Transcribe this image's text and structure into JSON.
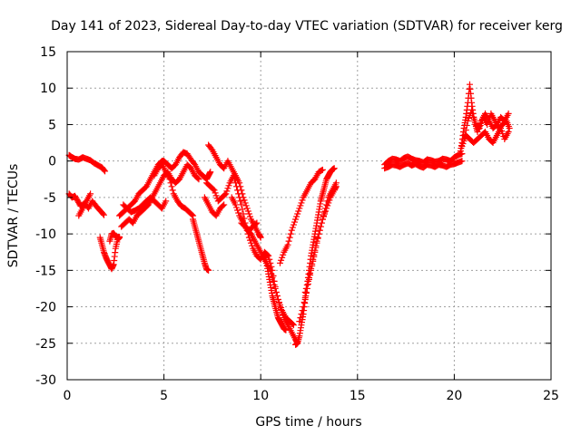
{
  "chart_data": {
    "type": "scatter",
    "title": "Day 141 of 2023, Sidereal Day-to-day VTEC variation (SDTVAR) for receiver kerg",
    "xlabel": "GPS time / hours",
    "ylabel": "SDTVAR / TECUs",
    "xlim": [
      0,
      25
    ],
    "ylim": [
      -30,
      15
    ],
    "xticks": [
      0,
      5,
      10,
      15,
      20,
      25
    ],
    "yticks": [
      -30,
      -25,
      -20,
      -15,
      -10,
      -5,
      0,
      5,
      10,
      15
    ],
    "xtick_labels": [
      "0",
      "5",
      "10",
      "15",
      "20",
      "25"
    ],
    "ytick_labels": [
      "-30",
      "-25",
      "-20",
      "-15",
      "-10",
      "-5",
      "0",
      "5",
      "10",
      "15"
    ],
    "grid": true,
    "marker": "+",
    "series": [
      {
        "name": "SDTVAR",
        "color": "#ff0000",
        "segments": [
          {
            "x": [
              0.1,
              0.2,
              0.4,
              0.6,
              0.8,
              1.0,
              1.2,
              1.4,
              1.6,
              1.8,
              1.95
            ],
            "y": [
              0.8,
              0.6,
              0.3,
              0.2,
              0.5,
              0.3,
              0.1,
              -0.3,
              -0.6,
              -0.9,
              -1.4
            ]
          },
          {
            "x": [
              0.1,
              0.25,
              0.4,
              0.55,
              0.7,
              0.9,
              1.1,
              1.3,
              1.5,
              1.7,
              1.9
            ],
            "y": [
              -4.5,
              -5.0,
              -4.8,
              -5.5,
              -6.2,
              -5.8,
              -6.5,
              -5.5,
              -6.2,
              -6.8,
              -7.4
            ]
          },
          {
            "x": [
              0.6,
              0.8,
              1.0,
              1.2
            ],
            "y": [
              -7.5,
              -6.5,
              -5.5,
              -4.5
            ]
          },
          {
            "x": [
              1.7,
              1.8,
              1.9,
              2.0,
              2.1,
              2.2,
              2.3,
              2.4,
              2.5,
              2.6,
              2.7
            ],
            "y": [
              -10.5,
              -11.5,
              -12.5,
              -13.2,
              -13.8,
              -14.3,
              -14.8,
              -14.2,
              -12.0,
              -10.8,
              -10.5
            ]
          },
          {
            "x": [
              2.2,
              2.3,
              2.4,
              2.5,
              2.6,
              2.7
            ],
            "y": [
              -11.0,
              -10.0,
              -9.9,
              -10.3,
              -10.5,
              -10.4
            ]
          },
          {
            "x": [
              2.7,
              2.9,
              3.1,
              3.3,
              3.5,
              3.7,
              3.9,
              4.1,
              4.3,
              4.5,
              4.7,
              4.9,
              5.0,
              5.2,
              5.4,
              5.6,
              5.8,
              6.0,
              6.2,
              6.4,
              6.6,
              6.8,
              7.0,
              7.2,
              7.3,
              7.4
            ],
            "y": [
              -7.5,
              -7.0,
              -6.5,
              -6.0,
              -5.5,
              -4.5,
              -4.0,
              -3.5,
              -2.5,
              -1.5,
              -0.5,
              0.0,
              0.0,
              -0.5,
              -1.0,
              -0.5,
              0.5,
              1.2,
              1.0,
              0.2,
              -0.5,
              -1.5,
              -2.0,
              -2.5,
              -2.0,
              -1.5
            ]
          },
          {
            "x": [
              2.8,
              3.0,
              3.2,
              3.4,
              3.6,
              3.8,
              4.0,
              4.2,
              4.4,
              4.6,
              4.8,
              5.0,
              5.2,
              5.4,
              5.6,
              5.8,
              6.0,
              6.2,
              6.4,
              6.6,
              6.8
            ],
            "y": [
              -9.0,
              -8.5,
              -8.0,
              -8.5,
              -7.5,
              -7.0,
              -6.5,
              -6.0,
              -5.0,
              -4.0,
              -3.0,
              -2.0,
              -1.5,
              -2.5,
              -3.0,
              -2.5,
              -1.5,
              -0.5,
              -1.0,
              -2.0,
              -2.5
            ]
          },
          {
            "x": [
              2.9,
              3.1,
              3.3,
              3.5,
              3.7,
              3.9,
              4.1,
              4.3,
              4.5,
              4.7,
              4.9,
              5.1
            ],
            "y": [
              -6.0,
              -6.5,
              -7.0,
              -6.8,
              -6.5,
              -6.0,
              -5.5,
              -5.0,
              -5.5,
              -6.0,
              -6.5,
              -5.5
            ]
          },
          {
            "x": [
              4.5,
              4.7,
              4.9,
              5.1,
              5.3,
              5.5,
              5.7,
              5.9,
              6.1,
              6.3,
              6.5
            ],
            "y": [
              -2.0,
              -1.0,
              -0.5,
              -1.5,
              -2.5,
              -4.5,
              -5.5,
              -6.2,
              -6.5,
              -7.0,
              -7.5
            ]
          },
          {
            "x": [
              6.5,
              6.6,
              6.7,
              6.8,
              6.9,
              7.0,
              7.1,
              7.2,
              7.3
            ],
            "y": [
              -8.0,
              -9.0,
              -10.0,
              -11.0,
              -12.0,
              -13.0,
              -14.0,
              -14.8,
              -15.0
            ]
          },
          {
            "x": [
              7.3,
              7.5,
              7.7,
              7.9,
              8.1,
              8.3,
              8.5,
              8.7,
              8.9,
              9.1,
              9.3,
              9.5,
              9.7,
              9.9,
              10.0
            ],
            "y": [
              2.2,
              1.5,
              0.5,
              -0.5,
              -1.0,
              0.0,
              -1.0,
              -2.0,
              -3.0,
              -5.0,
              -6.5,
              -8.0,
              -9.0,
              -10.0,
              -10.5
            ]
          },
          {
            "x": [
              7.2,
              7.4,
              7.6,
              7.8,
              8.0,
              8.2,
              8.4,
              8.6,
              8.8,
              9.0,
              9.2,
              9.4,
              9.6,
              9.8,
              10.0,
              10.2,
              10.4,
              10.6,
              10.8,
              11.0,
              11.2,
              11.4,
              11.6,
              11.8,
              11.9
            ],
            "y": [
              -3.0,
              -3.5,
              -4.0,
              -5.5,
              -5.0,
              -4.5,
              -3.0,
              -2.0,
              -4.0,
              -6.0,
              -8.5,
              -10.5,
              -12.0,
              -13.0,
              -13.5,
              -12.5,
              -13.0,
              -15.0,
              -18.0,
              -20.0,
              -21.5,
              -22.5,
              -23.5,
              -24.5,
              -25.0
            ]
          },
          {
            "x": [
              7.1,
              7.3,
              7.5,
              7.7,
              7.9,
              8.1
            ],
            "y": [
              -5.0,
              -6.0,
              -7.0,
              -7.5,
              -6.5,
              -6.0
            ]
          },
          {
            "x": [
              8.5,
              8.7,
              8.9,
              9.1,
              9.3,
              9.5,
              9.7,
              9.9,
              10.1,
              10.3,
              10.5,
              10.7,
              10.9,
              11.1,
              11.3,
              11.5,
              11.7
            ],
            "y": [
              -5.0,
              -6.0,
              -7.5,
              -8.5,
              -9.5,
              -10.0,
              -11.0,
              -12.0,
              -13.0,
              -14.0,
              -15.0,
              -17.0,
              -19.0,
              -20.5,
              -21.5,
              -22.0,
              -22.5
            ]
          },
          {
            "x": [
              9.0,
              9.2,
              9.4,
              9.6,
              9.8
            ],
            "y": [
              -8.5,
              -9.0,
              -9.5,
              -9.0,
              -8.5
            ]
          },
          {
            "x": [
              10.2,
              10.3,
              10.4,
              10.5,
              10.6,
              10.7,
              10.8,
              10.9,
              11.0,
              11.1,
              11.2,
              11.3
            ],
            "y": [
              -13.0,
              -14.0,
              -15.5,
              -17.0,
              -18.5,
              -19.5,
              -20.5,
              -21.5,
              -22.0,
              -22.5,
              -23.0,
              -23.2
            ]
          },
          {
            "x": [
              11.0,
              11.2,
              11.4,
              11.6,
              11.8,
              12.0,
              12.2,
              12.4,
              12.6,
              12.8,
              13.0,
              13.2
            ],
            "y": [
              -14.0,
              -12.5,
              -11.5,
              -9.5,
              -8.0,
              -6.5,
              -5.0,
              -4.0,
              -3.0,
              -2.5,
              -1.5,
              -1.2
            ]
          },
          {
            "x": [
              11.8,
              11.9,
              12.0,
              12.1,
              12.2,
              12.3,
              12.4,
              12.5,
              12.6,
              12.7,
              12.8,
              12.9,
              13.0,
              13.1,
              13.2,
              13.3,
              13.4,
              13.5,
              13.6,
              13.7,
              13.8
            ],
            "y": [
              -25.2,
              -25.0,
              -24.0,
              -22.5,
              -21.0,
              -19.0,
              -17.0,
              -15.0,
              -13.0,
              -11.5,
              -10.0,
              -8.5,
              -7.0,
              -5.5,
              -4.5,
              -3.5,
              -2.5,
              -2.0,
              -1.5,
              -1.2,
              -1.0
            ]
          },
          {
            "x": [
              12.0,
              12.2,
              12.4,
              12.6,
              12.8,
              13.0,
              13.2,
              13.4,
              13.6,
              13.8,
              13.9
            ],
            "y": [
              -22.0,
              -20.0,
              -17.5,
              -15.0,
              -12.5,
              -10.0,
              -8.0,
              -6.5,
              -5.0,
              -4.0,
              -3.5
            ]
          },
          {
            "x": [
              12.3,
              12.5,
              12.7,
              12.9,
              13.1,
              13.3,
              13.5,
              13.7,
              13.9
            ],
            "y": [
              -18.0,
              -16.0,
              -13.5,
              -11.0,
              -9.0,
              -7.0,
              -5.0,
              -4.0,
              -3.0
            ]
          },
          {
            "x": [
              16.4,
              16.6,
              16.8,
              17.0,
              17.2,
              17.4,
              17.6,
              17.8,
              18.0,
              18.2,
              18.4,
              18.6,
              18.8,
              19.0,
              19.2,
              19.4,
              19.6,
              19.8,
              20.0,
              20.2,
              20.4
            ],
            "y": [
              -0.5,
              0.0,
              0.3,
              0.2,
              0.0,
              0.4,
              0.6,
              0.3,
              0.1,
              0.0,
              -0.2,
              0.2,
              0.1,
              -0.1,
              0.0,
              0.3,
              0.2,
              0.0,
              0.5,
              0.8,
              1.0
            ]
          },
          {
            "x": [
              16.4,
              16.6,
              16.8,
              17.0,
              17.2,
              17.4,
              17.6,
              17.8,
              18.0,
              18.2,
              18.4,
              18.6,
              18.8,
              19.0,
              19.2,
              19.4,
              19.6,
              19.8,
              20.0,
              20.2,
              20.4
            ],
            "y": [
              -1.0,
              -0.8,
              -0.5,
              -0.6,
              -0.8,
              -0.5,
              -0.3,
              -0.6,
              -0.4,
              -0.7,
              -0.9,
              -0.5,
              -0.6,
              -0.8,
              -0.5,
              -0.6,
              -0.8,
              -0.5,
              -0.4,
              -0.2,
              0.0
            ]
          },
          {
            "x": [
              20.3,
              20.4,
              20.5,
              20.6,
              20.7,
              20.8,
              20.9,
              21.0,
              21.1,
              21.2,
              21.4,
              21.6,
              21.8,
              22.0,
              22.2,
              22.4,
              22.6,
              22.8
            ],
            "y": [
              1.0,
              2.5,
              4.5,
              6.0,
              8.0,
              10.5,
              8.0,
              6.0,
              5.0,
              4.0,
              5.5,
              6.5,
              5.5,
              4.5,
              5.0,
              6.0,
              5.5,
              6.5
            ]
          },
          {
            "x": [
              20.4,
              20.6,
              20.8,
              21.0,
              21.2,
              21.4,
              21.6,
              21.8,
              22.0,
              22.2,
              22.4,
              22.6,
              22.8
            ],
            "y": [
              2.0,
              3.5,
              3.0,
              2.5,
              3.0,
              3.5,
              4.0,
              3.0,
              2.5,
              3.5,
              4.5,
              3.0,
              4.0
            ]
          },
          {
            "x": [
              20.5,
              20.7,
              20.9,
              21.1,
              21.3,
              21.5,
              21.7,
              21.9,
              22.1,
              22.3,
              22.5,
              22.7,
              22.85
            ],
            "y": [
              3.0,
              5.5,
              7.0,
              5.0,
              4.5,
              6.0,
              5.0,
              6.5,
              5.5,
              4.5,
              5.0,
              5.5,
              4.5
            ]
          }
        ]
      }
    ]
  }
}
